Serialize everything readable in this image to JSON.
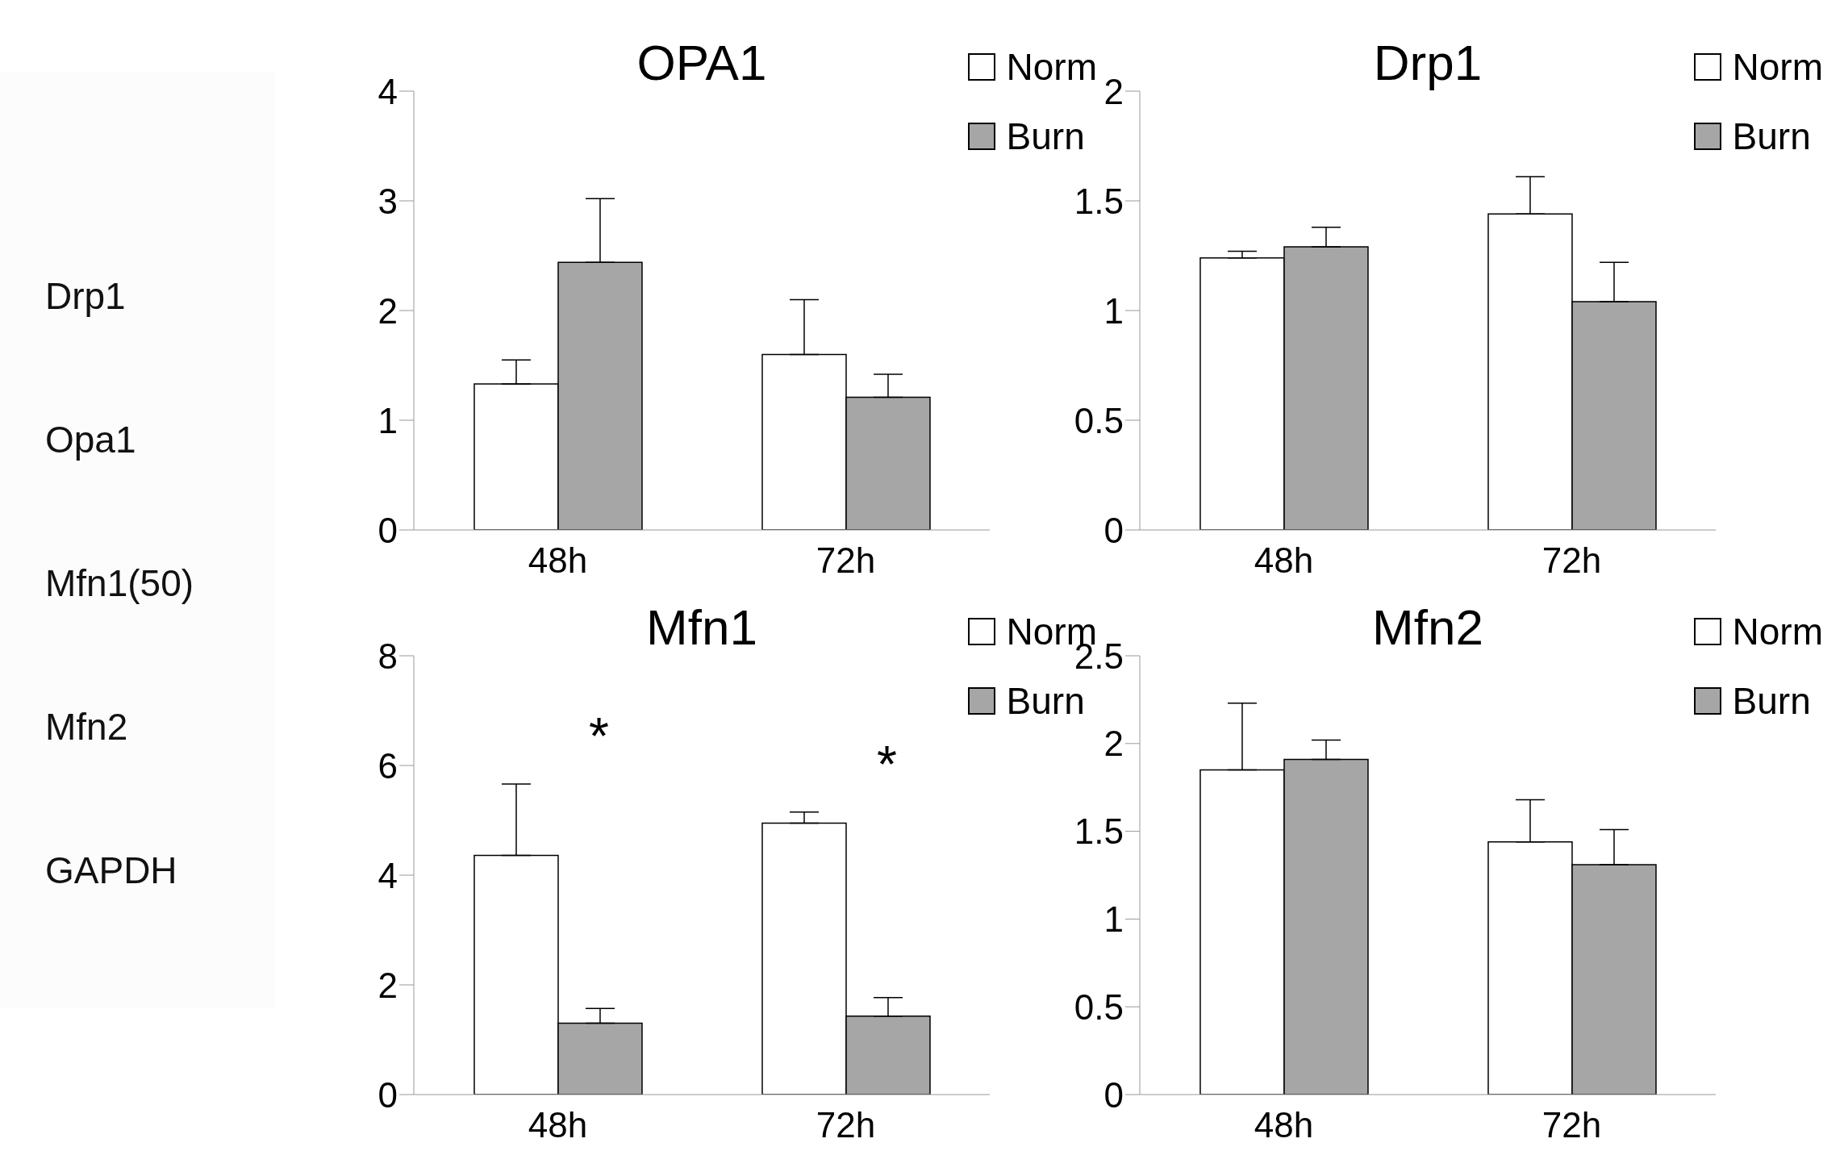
{
  "chart_data": [
    {
      "type": "other",
      "annotations": [
        "Drp1",
        "Opa1",
        "Mfn1(50)",
        "Mfn2",
        "GAPDH"
      ]
    },
    {
      "type": "bar",
      "title": "OPA1",
      "categories": [
        "48h",
        "72h"
      ],
      "ylim": [
        0,
        4
      ],
      "yticks": [
        0,
        1,
        2,
        3,
        4
      ],
      "legend": "top right",
      "series": [
        {
          "name": "Norm",
          "color": "#ffffff",
          "values": [
            1.33,
            1.6
          ],
          "errors": [
            0.22,
            0.5
          ]
        },
        {
          "name": "Burn",
          "color": "#a6a6a6",
          "values": [
            2.44,
            1.21
          ],
          "errors": [
            0.58,
            0.21
          ]
        }
      ]
    },
    {
      "type": "bar",
      "title": "Drp1",
      "categories": [
        "48h",
        "72h"
      ],
      "ylim": [
        0,
        2
      ],
      "yticks": [
        0,
        0.5,
        1,
        1.5,
        2
      ],
      "legend": "top right",
      "series": [
        {
          "name": "Norm",
          "color": "#ffffff",
          "values": [
            1.24,
            1.44
          ],
          "errors": [
            0.03,
            0.17
          ]
        },
        {
          "name": "Burn",
          "color": "#a6a6a6",
          "values": [
            1.29,
            1.04
          ],
          "errors": [
            0.09,
            0.18
          ]
        }
      ]
    },
    {
      "type": "bar",
      "title": "Mfn1",
      "categories": [
        "48h",
        "72h"
      ],
      "ylim": [
        0,
        8
      ],
      "yticks": [
        0,
        2,
        4,
        6,
        8
      ],
      "legend": "top right",
      "annotations": [
        "*",
        "*"
      ],
      "series": [
        {
          "name": "Norm",
          "color": "#ffffff",
          "values": [
            4.36,
            4.95
          ],
          "errors": [
            1.3,
            0.2
          ]
        },
        {
          "name": "Burn",
          "color": "#a6a6a6",
          "values": [
            1.3,
            1.43
          ],
          "errors": [
            0.27,
            0.34
          ]
        }
      ]
    },
    {
      "type": "bar",
      "title": "Mfn2",
      "categories": [
        "48h",
        "72h"
      ],
      "ylim": [
        0,
        2.5
      ],
      "yticks": [
        0,
        0.5,
        1,
        1.5,
        2,
        2.5
      ],
      "legend": "top right",
      "series": [
        {
          "name": "Norm",
          "color": "#ffffff",
          "values": [
            1.85,
            1.44
          ],
          "errors": [
            0.38,
            0.24
          ]
        },
        {
          "name": "Burn",
          "color": "#a6a6a6",
          "values": [
            1.91,
            1.31
          ],
          "errors": [
            0.11,
            0.2
          ]
        }
      ]
    }
  ]
}
